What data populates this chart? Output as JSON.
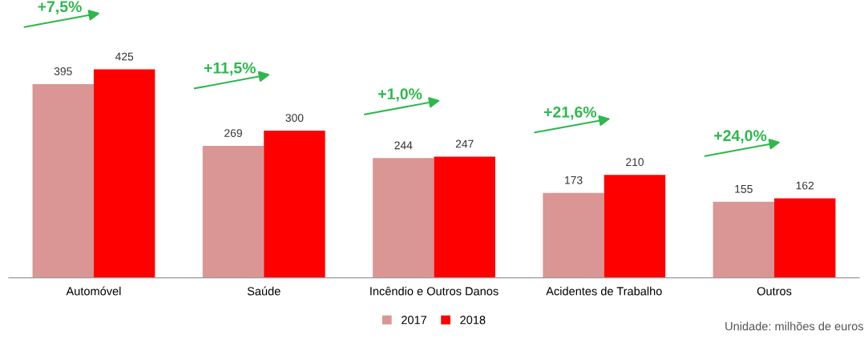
{
  "chart_data": {
    "type": "bar",
    "categories": [
      "Automóvel",
      "Saúde",
      "Incêndio e Outros Danos",
      "Acidentes de Trabalho",
      "Outros"
    ],
    "series": [
      {
        "name": "2017",
        "color": "#d99694",
        "values": [
          395,
          269,
          244,
          173,
          155
        ]
      },
      {
        "name": "2018",
        "color": "#ff0000",
        "values": [
          425,
          300,
          247,
          210,
          162
        ]
      }
    ],
    "tick_labels": "x",
    "data_labels": true,
    "legend": "bottom",
    "grid": false,
    "annotations": [
      "+7,5%",
      "+11,5%",
      "+1,0%",
      "+21,6%",
      "+24,0%",
      "Unidade: milhões de euros"
    ]
  }
}
